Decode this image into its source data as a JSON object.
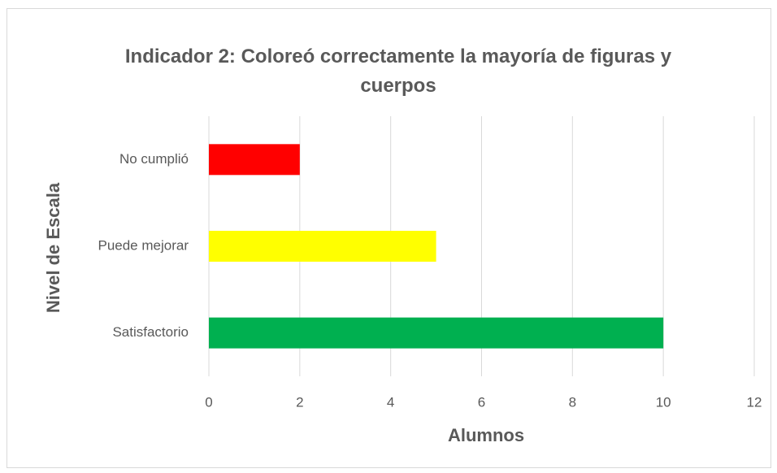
{
  "chart_data": {
    "type": "hbar",
    "title": "Indicador 2: Coloreó correctamente la mayoría de figuras y cuerpos",
    "categories": [
      "No cumplió",
      "Puede mejorar",
      "Satisfactorio"
    ],
    "values": [
      2,
      5,
      10
    ],
    "colors": [
      "#ff0000",
      "#ffff00",
      "#00b050"
    ],
    "xlim": [
      0,
      12
    ],
    "xticks": [
      0,
      2,
      4,
      6,
      8,
      10,
      12
    ],
    "xlabel": "Alumnos",
    "ylabel": "Nivel de Escala",
    "grid": true
  }
}
